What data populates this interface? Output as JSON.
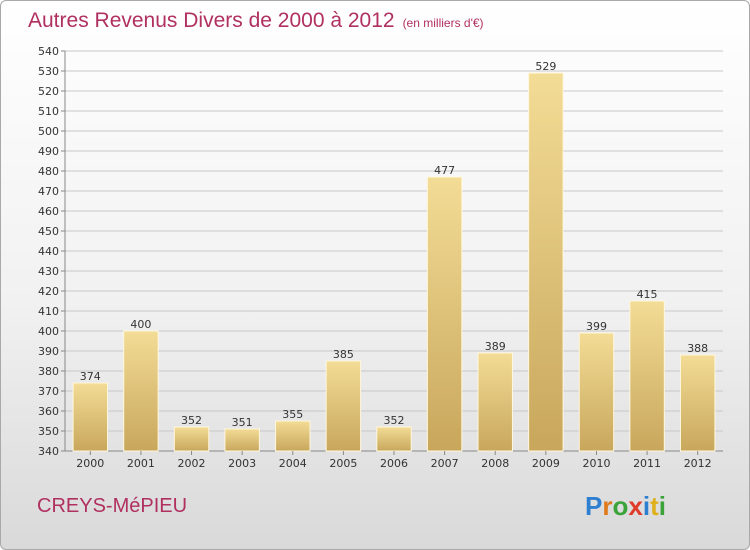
{
  "header": {
    "title": "Autres Revenus Divers de 2000 à 2012",
    "unit": "(en milliers d'€)"
  },
  "footer": {
    "town": "CREYS-MéPIEU",
    "logo_letters": [
      "P",
      "r",
      "o",
      "x",
      "i",
      "t",
      "i"
    ],
    "logo_colors": [
      "#2f7fd1",
      "#e07b1c",
      "#3aa33a",
      "#e03a2a",
      "#2f7fd1",
      "#e0b01c",
      "#3aa33a"
    ]
  },
  "colors": {
    "title": "#b03060",
    "bar_top": "#f3dc96",
    "bar_bottom": "#c8a75c",
    "grid": "#c8c8c8"
  },
  "chart_data": {
    "type": "bar",
    "title": "Autres Revenus Divers de 2000 à 2012",
    "xlabel": "",
    "ylabel": "",
    "categories": [
      "2000",
      "2001",
      "2002",
      "2003",
      "2004",
      "2005",
      "2006",
      "2007",
      "2008",
      "2009",
      "2010",
      "2011",
      "2012"
    ],
    "values": [
      374,
      400,
      352,
      351,
      355,
      385,
      352,
      477,
      389,
      529,
      399,
      415,
      388
    ],
    "ylim": [
      340,
      540
    ],
    "ytick_step": 10,
    "grid": true,
    "legend": "none"
  }
}
